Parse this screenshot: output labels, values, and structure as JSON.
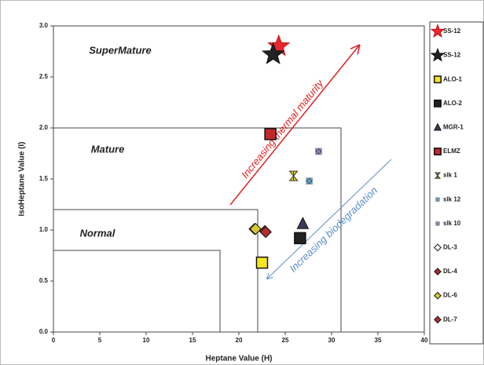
{
  "chart_data": {
    "type": "scatter",
    "xlabel": "Heptane Value (H)",
    "ylabel": "IsoHeptane Value (I)",
    "xlim": [
      0,
      40
    ],
    "xticks": [
      0,
      5,
      10,
      15,
      20,
      25,
      30,
      35,
      40
    ],
    "ylim": [
      0,
      3
    ],
    "yticks": [
      {
        "value": 0,
        "label": "0.0"
      },
      0.5,
      {
        "value": 1,
        "label": "1.0"
      },
      1.5,
      {
        "value": 2,
        "label": "2.0"
      },
      2.5,
      {
        "value": 3,
        "label": "3.0"
      }
    ],
    "annotations": [
      "SuperMature",
      "Mature",
      "Normal",
      "Increasing thermal maturity",
      "Increasing biodegradation"
    ],
    "legend": "right",
    "series": [
      {
        "name": "SS-12",
        "color": "#e8262e",
        "marker": "star",
        "x": [
          24.3
        ],
        "y": [
          2.8
        ]
      },
      {
        "name": "SS-12",
        "color": "#222222",
        "marker": "star",
        "x": [
          23.7
        ],
        "y": [
          2.72
        ]
      },
      {
        "name": "ALO-1",
        "color": "#f5e61e",
        "marker": "square",
        "x": [
          22.5
        ],
        "y": [
          0.68
        ]
      },
      {
        "name": "ALO-2",
        "color": "#222222",
        "marker": "square",
        "x": [
          26.6
        ],
        "y": [
          0.92
        ]
      },
      {
        "name": "MGR-1",
        "color": "#3b3a5a",
        "marker": "triangle",
        "x": [
          26.9
        ],
        "y": [
          1.06
        ]
      },
      {
        "name": "ELMZ",
        "color": "#c0282d",
        "marker": "square",
        "x": [
          23.4
        ],
        "y": [
          1.94
        ]
      },
      {
        "name": "slk 1",
        "color": "#e8d21d",
        "marker": "xstar",
        "x": [
          25.9
        ],
        "y": [
          1.53
        ]
      },
      {
        "name": "slk 12",
        "color": "#2b6f8f",
        "marker": "xsquare",
        "x": [
          27.6
        ],
        "y": [
          1.48
        ]
      },
      {
        "name": "slk 10",
        "color": "#5a4a78",
        "marker": "xsquare",
        "x": [
          28.6
        ],
        "y": [
          1.77
        ]
      },
      {
        "name": "DL-3",
        "color": "#ffffff",
        "marker": "diamond",
        "x": [
          21.7
        ],
        "y": [
          1.01
        ]
      },
      {
        "name": "DL-4",
        "color": "#a03030",
        "marker": "diamond",
        "x": [
          22.8
        ],
        "y": [
          0.99
        ]
      },
      {
        "name": "DL-6",
        "color": "#d8c830",
        "marker": "diamond",
        "x": [
          21.8
        ],
        "y": [
          1.01
        ]
      },
      {
        "name": "DL-7",
        "color": "#b03030",
        "marker": "diamond",
        "x": [
          22.9
        ],
        "y": [
          0.98
        ]
      }
    ]
  }
}
